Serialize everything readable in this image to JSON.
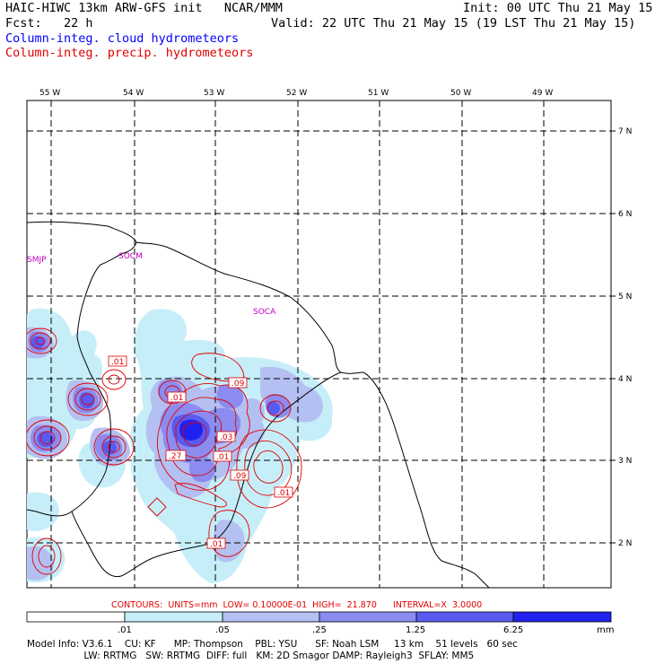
{
  "header": {
    "line1_left": "HAIC-HIWC 13km ARW-GFS init   NCAR/MMM",
    "line1_right": "Init: 00 UTC Thu 21 May 15",
    "line2_left": "Fcst:   22 h",
    "line2_right": "Valid: 22 UTC Thu 21 May 15 (19 LST Thu 21 May 15)",
    "cloud_title": "Column-integ. cloud hydrometeors",
    "precip_title": "Column-integ. precip. hydrometeors",
    "cloud_color": "#0000ff",
    "precip_color": "#e00000"
  },
  "map": {
    "lon_labels": [
      "55 W",
      "54 W",
      "53 W",
      "52 W",
      "51 W",
      "50 W",
      "49 W"
    ],
    "lat_labels": [
      "7 N",
      "6 N",
      "5 N",
      "4 N",
      "3 N",
      "2 N"
    ],
    "sites": [
      "SMJP",
      "SOCM",
      "SOCA"
    ],
    "site_color": "#c000c0",
    "contour_labels": [
      ".01",
      ".01",
      ".09",
      ".03",
      ".27",
      ".01",
      ".09",
      ".01",
      ".01"
    ],
    "contour_info": "CONTOURS:  UNITS=mm  LOW= 0.10000E-01  HIGH=  21.870      INTERVAL=X  3.0000"
  },
  "colorbar": {
    "ticks": [
      ".01",
      ".05",
      ".25",
      "1.25",
      "6.25"
    ],
    "units": "mm",
    "colors": [
      "#ffffff",
      "#c6eef8",
      "#b4c0f2",
      "#8c8cf0",
      "#5a5af0",
      "#2020f0"
    ]
  },
  "model_info": {
    "line1": "Model Info: V3.6.1    CU: KF      MP: Thompson    PBL: YSU      SF: Noah LSM     13 km    51 levels   60 sec",
    "line2": "                   LW: RRTMG   SW: RRTMG  DIFF: full   KM: 2D Smagor DAMP: Rayleigh3  SFLAY: MM5"
  }
}
